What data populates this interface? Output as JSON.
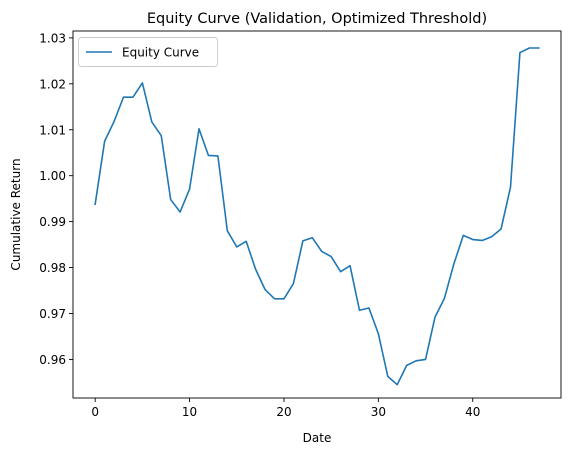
{
  "chart_data": {
    "type": "line",
    "title": "Equity Curve (Validation, Optimized Threshold)",
    "xlabel": "Date",
    "ylabel": "Cumulative Return",
    "xlim": [
      -2.35,
      49.35
    ],
    "ylim": [
      0.9516,
      1.0315
    ],
    "xticks": [
      0,
      10,
      20,
      30,
      40
    ],
    "xtick_labels": [
      "0",
      "10",
      "20",
      "30",
      "40"
    ],
    "yticks": [
      0.96,
      0.97,
      0.98,
      0.99,
      1.0,
      1.01,
      1.02,
      1.03
    ],
    "ytick_labels": [
      "0.96",
      "0.97",
      "0.98",
      "0.99",
      "1.00",
      "1.01",
      "1.02",
      "1.03"
    ],
    "grid": false,
    "legend_position": "top-left",
    "series": [
      {
        "name": "Equity Curve",
        "color": "#1f77b4",
        "x": [
          0,
          1,
          2,
          3,
          4,
          5,
          6,
          7,
          8,
          9,
          10,
          11,
          12,
          13,
          14,
          15,
          16,
          17,
          18,
          19,
          20,
          21,
          22,
          23,
          24,
          25,
          26,
          27,
          28,
          29,
          30,
          31,
          32,
          33,
          34,
          35,
          36,
          37,
          38,
          39,
          40,
          41,
          42,
          43,
          44,
          45,
          46,
          47
        ],
        "values": [
          0.9938,
          1.0075,
          1.0118,
          1.0171,
          1.0171,
          1.0202,
          1.0117,
          1.0087,
          0.9948,
          0.9921,
          0.9971,
          1.0102,
          1.0044,
          1.0043,
          0.988,
          0.9845,
          0.9857,
          0.9796,
          0.9752,
          0.9732,
          0.9732,
          0.9765,
          0.9858,
          0.9865,
          0.9835,
          0.9824,
          0.9791,
          0.9804,
          0.9707,
          0.9712,
          0.9656,
          0.9563,
          0.9545,
          0.9587,
          0.9597,
          0.96,
          0.9692,
          0.9733,
          0.9808,
          0.987,
          0.9861,
          0.9859,
          0.9867,
          0.9884,
          0.9975,
          1.0268,
          1.0278,
          1.0278
        ]
      }
    ]
  }
}
